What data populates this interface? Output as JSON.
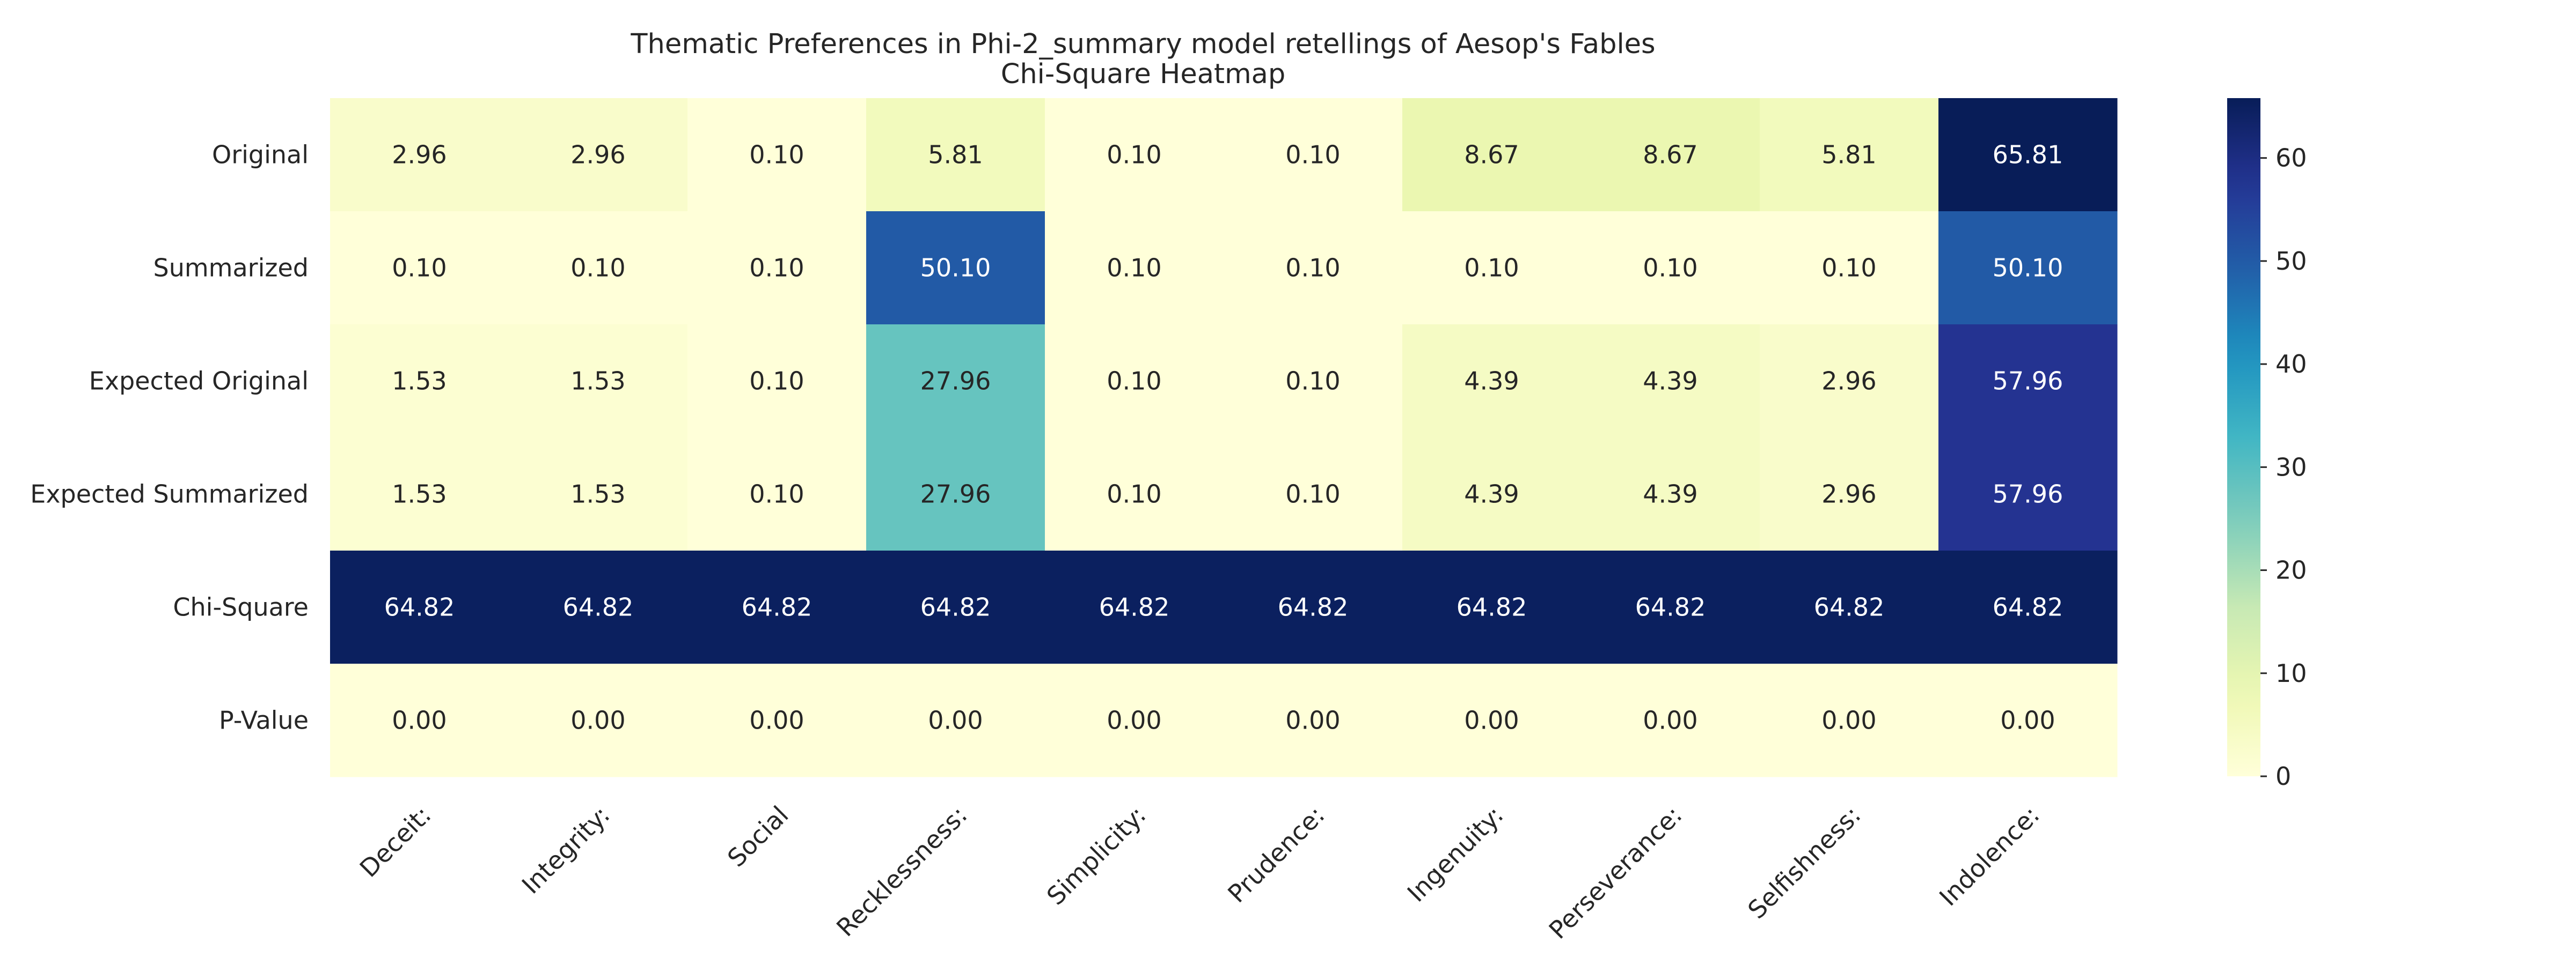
{
  "chart_data": {
    "type": "heatmap",
    "title": "Thematic Preferences in Phi-2_summary model retellings of Aesop's Fables",
    "subtitle": "Chi-Square Heatmap",
    "rows": [
      "Original",
      "Summarized",
      "Expected Original",
      "Expected Summarized",
      "Chi-Square",
      "P-Value"
    ],
    "columns": [
      "Deceit:",
      "Integrity:",
      "Social",
      "Recklessness:",
      "Simplicity:",
      "Prudence:",
      "Ingenuity:",
      "Perseverance:",
      "Selfishness:",
      "Indolence:"
    ],
    "values": [
      [
        2.96,
        2.96,
        0.1,
        5.81,
        0.1,
        0.1,
        8.67,
        8.67,
        5.81,
        65.81
      ],
      [
        0.1,
        0.1,
        0.1,
        50.1,
        0.1,
        0.1,
        0.1,
        0.1,
        0.1,
        50.1
      ],
      [
        1.53,
        1.53,
        0.1,
        27.96,
        0.1,
        0.1,
        4.39,
        4.39,
        2.96,
        57.96
      ],
      [
        1.53,
        1.53,
        0.1,
        27.96,
        0.1,
        0.1,
        4.39,
        4.39,
        2.96,
        57.96
      ],
      [
        64.82,
        64.82,
        64.82,
        64.82,
        64.82,
        64.82,
        64.82,
        64.82,
        64.82,
        64.82
      ],
      [
        0.0,
        0.0,
        0.0,
        0.0,
        0.0,
        0.0,
        0.0,
        0.0,
        0.0,
        0.0
      ]
    ],
    "value_labels": [
      [
        "2.96",
        "2.96",
        "0.10",
        "5.81",
        "0.10",
        "0.10",
        "8.67",
        "8.67",
        "5.81",
        "65.81"
      ],
      [
        "0.10",
        "0.10",
        "0.10",
        "50.10",
        "0.10",
        "0.10",
        "0.10",
        "0.10",
        "0.10",
        "50.10"
      ],
      [
        "1.53",
        "1.53",
        "0.10",
        "27.96",
        "0.10",
        "0.10",
        "4.39",
        "4.39",
        "2.96",
        "57.96"
      ],
      [
        "1.53",
        "1.53",
        "0.10",
        "27.96",
        "0.10",
        "0.10",
        "4.39",
        "4.39",
        "2.96",
        "57.96"
      ],
      [
        "64.82",
        "64.82",
        "64.82",
        "64.82",
        "64.82",
        "64.82",
        "64.82",
        "64.82",
        "64.82",
        "64.82"
      ],
      [
        "0.00",
        "0.00",
        "0.00",
        "0.00",
        "0.00",
        "0.00",
        "0.00",
        "0.00",
        "0.00",
        "0.00"
      ]
    ],
    "colormap": "YlGnBu",
    "colorbar": {
      "range": [
        0,
        65.81
      ],
      "ticks": [
        0,
        10,
        20,
        30,
        40,
        50,
        60
      ],
      "tick_labels": [
        "0",
        "10",
        "20",
        "30",
        "40",
        "50",
        "60"
      ],
      "placement": "right"
    },
    "xlabel_rotation_deg": -45,
    "grid": false,
    "legend": "none"
  }
}
